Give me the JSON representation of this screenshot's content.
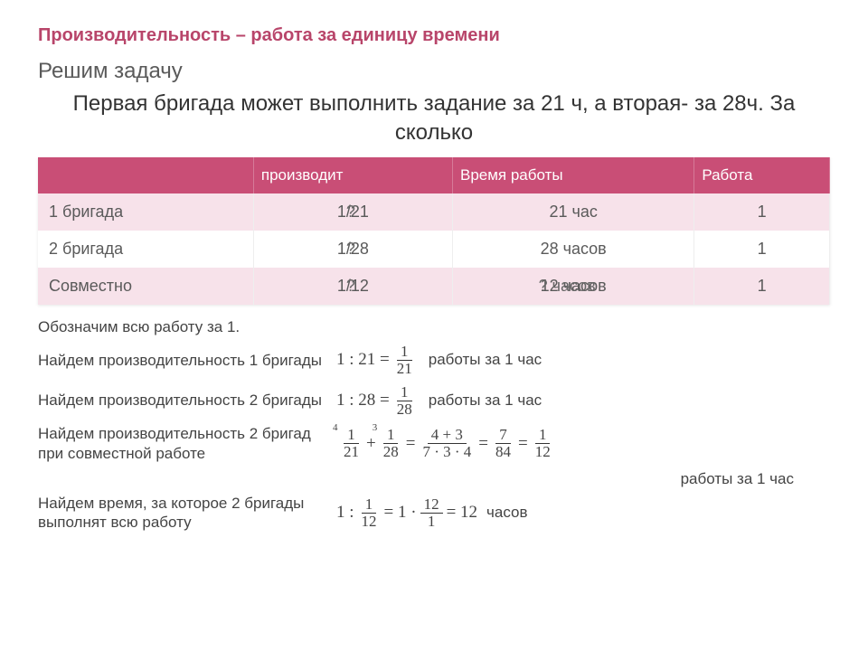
{
  "colors": {
    "title": "#b8456a",
    "table_header_bg": "#c94e76",
    "row_shade": "#f7e2ea",
    "text": "#333333",
    "muted": "#5a5a5a"
  },
  "title": "Производительность – работа за единицу времени",
  "subtitle": "Решим задачу",
  "problem": "Первая бригада может выполнить задание за 21 ч, а вторая- за 28ч. За сколько",
  "table": {
    "headers": [
      "",
      "производит",
      "Время работы",
      "Работа"
    ],
    "rows": [
      {
        "label": "1 бригада",
        "produce": "1/21",
        "produce_overlay": "?",
        "time": "21 час",
        "work": "1"
      },
      {
        "label": "2 бригада",
        "produce": "1/28",
        "produce_overlay": "?",
        "time": "28 часов",
        "work": "1"
      },
      {
        "label": "Совместно",
        "produce": "1/12",
        "produce_overlay": "?",
        "time": "12 часов",
        "time_overlay": "? часов",
        "work": "1"
      }
    ]
  },
  "step0": "Обозначим всю работу за 1.",
  "step1": {
    "text": "Найдем производительность 1 бригады",
    "expr_prefix": "1 : 21 =",
    "frac_num": "1",
    "frac_den": "21",
    "tail": "работы за 1 час"
  },
  "step2": {
    "text": "Найдем производительность 2 бригады",
    "expr_prefix": "1 : 28 =",
    "frac_num": "1",
    "frac_den": "28",
    "tail": "работы за 1 час"
  },
  "step3": {
    "text": "Найдем производительность 2 бригад при совместной работе",
    "f1": {
      "num": "1",
      "den": "21",
      "supl": "4"
    },
    "plus1": "+",
    "f2": {
      "num": "1",
      "den": "28",
      "supl": "3"
    },
    "eq1": "=",
    "f3": {
      "num": "4 + 3",
      "den": "7 · 3 · 4"
    },
    "eq2": "=",
    "f4": {
      "num": "7",
      "den": "84"
    },
    "eq3": "=",
    "f5": {
      "num": "1",
      "den": "12"
    },
    "tail": "работы за 1 час"
  },
  "step4": {
    "text": "Найдем время, за которое 2 бригады выполнят всю работу",
    "prefix": "1 :",
    "f1": {
      "num": "1",
      "den": "12"
    },
    "mid": "= 1 ·",
    "f2": {
      "num": "12",
      "den": "1"
    },
    "eq": "= 12",
    "tail": "часов"
  }
}
